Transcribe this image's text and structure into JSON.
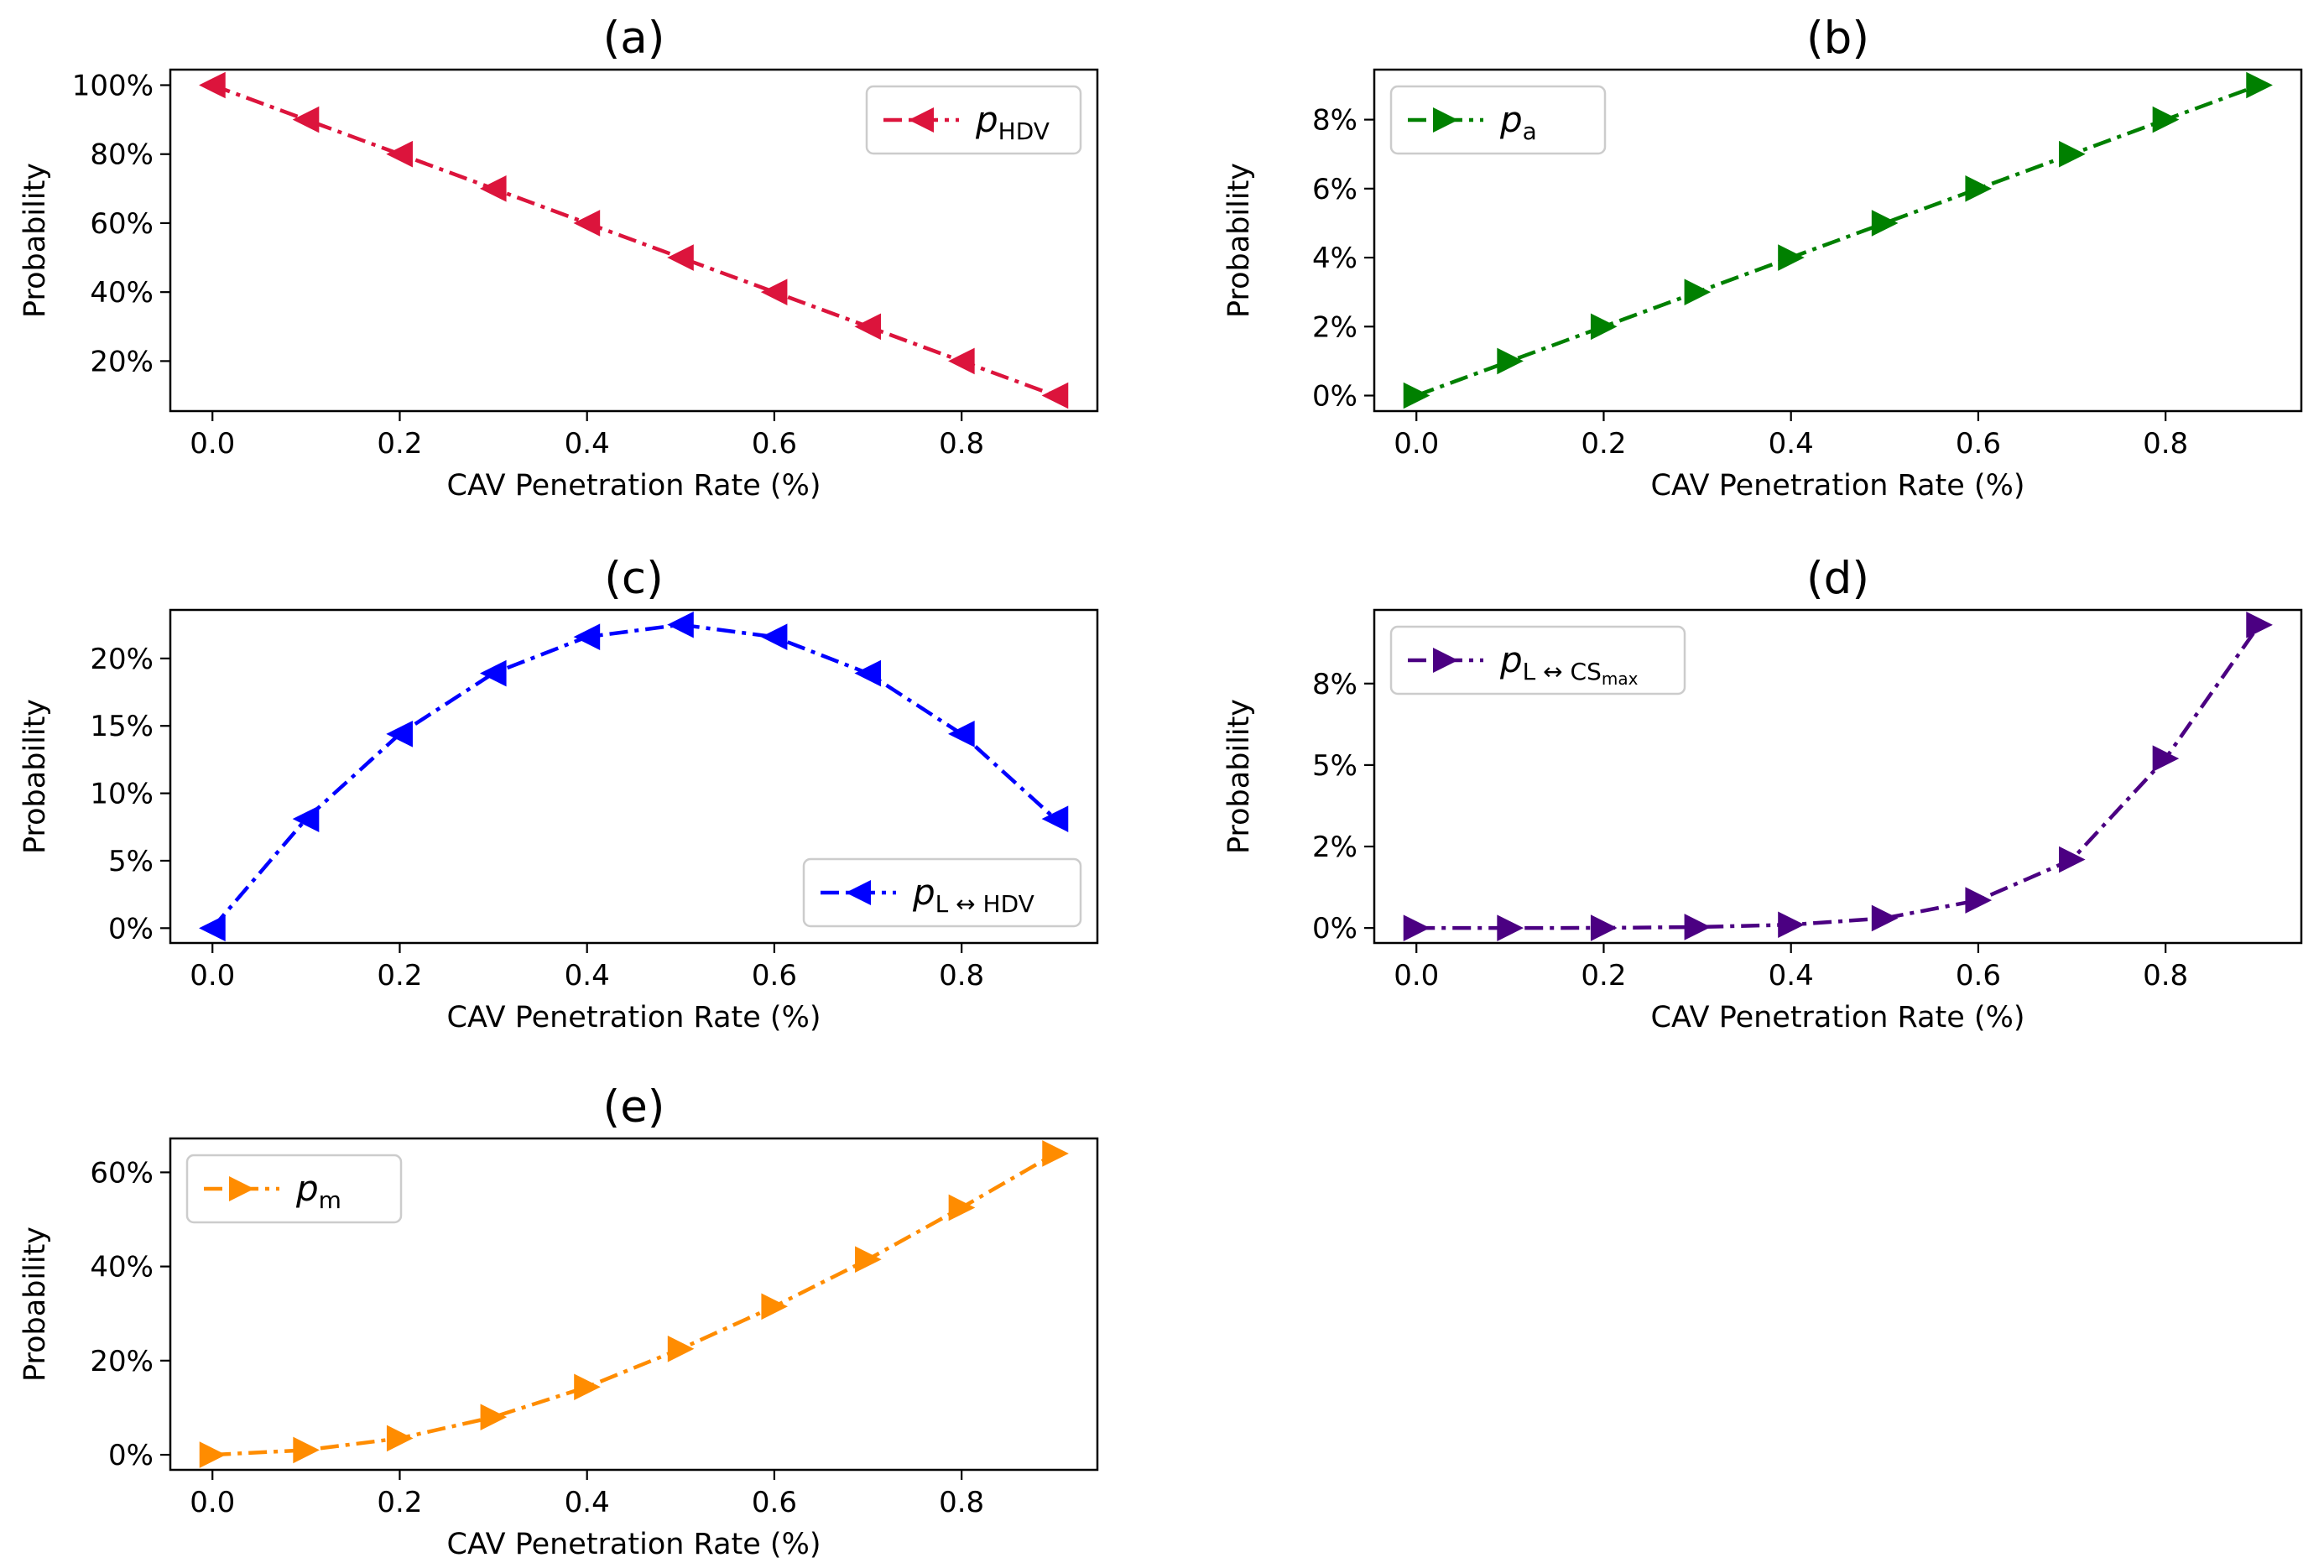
{
  "chart_data": [
    {
      "id": "a",
      "type": "line",
      "title": "(a)",
      "xlabel": "CAV Penetration Rate (%)",
      "ylabel": "Probability",
      "color": "#dc143c",
      "marker": "triangle-left",
      "line_style": "dashdot",
      "legend_position": "top-right",
      "legend": {
        "main": "p",
        "sub": "HDV"
      },
      "x": [
        0.0,
        0.1,
        0.2,
        0.3,
        0.4,
        0.5,
        0.6,
        0.7,
        0.8,
        0.9
      ],
      "values": [
        100,
        90,
        80,
        70,
        60,
        50,
        40,
        30,
        20,
        10
      ],
      "xlim": [
        -0.045,
        0.945
      ],
      "ylim": [
        5.5,
        104.5
      ],
      "xticks": [
        0.0,
        0.2,
        0.4,
        0.6,
        0.8
      ],
      "xtick_labels": [
        "0.0",
        "0.2",
        "0.4",
        "0.6",
        "0.8"
      ],
      "yticks": [
        20,
        40,
        60,
        80,
        100
      ],
      "ytick_labels": [
        "20%",
        "40%",
        "60%",
        "80%",
        "100%"
      ]
    },
    {
      "id": "b",
      "type": "line",
      "title": "(b)",
      "xlabel": "CAV Penetration Rate (%)",
      "ylabel": "Probability",
      "color": "#008000",
      "marker": "triangle-right",
      "line_style": "dashdot",
      "legend_position": "top-left",
      "legend": {
        "main": "p",
        "sub": "a"
      },
      "x": [
        0.0,
        0.1,
        0.2,
        0.3,
        0.4,
        0.5,
        0.6,
        0.7,
        0.8,
        0.9
      ],
      "values": [
        0,
        1,
        2,
        3,
        4,
        5,
        6,
        7,
        8,
        9
      ],
      "xlim": [
        -0.045,
        0.945
      ],
      "ylim": [
        -0.45,
        9.45
      ],
      "xticks": [
        0.0,
        0.2,
        0.4,
        0.6,
        0.8
      ],
      "xtick_labels": [
        "0.0",
        "0.2",
        "0.4",
        "0.6",
        "0.8"
      ],
      "yticks": [
        0,
        2,
        4,
        6,
        8
      ],
      "ytick_labels": [
        "0%",
        "2%",
        "4%",
        "6%",
        "8%"
      ]
    },
    {
      "id": "c",
      "type": "line",
      "title": "(c)",
      "xlabel": "CAV Penetration Rate (%)",
      "ylabel": "Probability",
      "color": "#0000ff",
      "marker": "triangle-left",
      "line_style": "dashdot",
      "legend_position": "bottom-right",
      "legend": {
        "main": "p",
        "sub": "L ↔ HDV"
      },
      "x": [
        0.0,
        0.1,
        0.2,
        0.3,
        0.4,
        0.5,
        0.6,
        0.7,
        0.8,
        0.9
      ],
      "values": [
        0,
        8.1,
        14.4,
        18.9,
        21.6,
        22.5,
        21.6,
        18.9,
        14.4,
        8.1
      ],
      "xlim": [
        -0.045,
        0.945
      ],
      "ylim": [
        -1.1,
        23.6
      ],
      "xticks": [
        0.0,
        0.2,
        0.4,
        0.6,
        0.8
      ],
      "xtick_labels": [
        "0.0",
        "0.2",
        "0.4",
        "0.6",
        "0.8"
      ],
      "yticks": [
        0,
        5,
        10,
        15,
        20
      ],
      "ytick_labels": [
        "0%",
        "5%",
        "10%",
        "15%",
        "20%"
      ]
    },
    {
      "id": "d",
      "type": "line",
      "title": "(d)",
      "xlabel": "CAV Penetration Rate (%)",
      "ylabel": "Probability",
      "color": "#4b0082",
      "marker": "triangle-right",
      "line_style": "dashdot",
      "legend_position": "top-left",
      "legend": {
        "main": "p",
        "sub": "L ↔ CS",
        "subsub": "max"
      },
      "x": [
        0.0,
        0.1,
        0.2,
        0.3,
        0.4,
        0.5,
        0.6,
        0.7,
        0.8,
        0.9
      ],
      "values": [
        0,
        0,
        0.003,
        0.03,
        0.1,
        0.3,
        0.85,
        2.1,
        5.2,
        9.3
      ],
      "xlim": [
        -0.045,
        0.945
      ],
      "ylim": [
        -0.46,
        9.76
      ],
      "xticks": [
        0.0,
        0.2,
        0.4,
        0.6,
        0.8
      ],
      "xtick_labels": [
        "0.0",
        "0.2",
        "0.4",
        "0.6",
        "0.8"
      ],
      "yticks": [
        0,
        2.5,
        5,
        7.5
      ],
      "ytick_labels": [
        "0%",
        "2%",
        "5%",
        "8%"
      ]
    },
    {
      "id": "e",
      "type": "line",
      "title": "(e)",
      "xlabel": "CAV Penetration Rate (%)",
      "ylabel": "Probability",
      "color": "#ff8c00",
      "marker": "triangle-right",
      "line_style": "dashdot",
      "legend_position": "top-left",
      "legend": {
        "main": "p",
        "sub": "m"
      },
      "x": [
        0.0,
        0.1,
        0.2,
        0.3,
        0.4,
        0.5,
        0.6,
        0.7,
        0.8,
        0.9
      ],
      "values": [
        0,
        1,
        3.5,
        8,
        14.4,
        22.5,
        31.5,
        41.5,
        52.5,
        64
      ],
      "xlim": [
        -0.045,
        0.945
      ],
      "ylim": [
        -3.2,
        67.2
      ],
      "xticks": [
        0.0,
        0.2,
        0.4,
        0.6,
        0.8
      ],
      "xtick_labels": [
        "0.0",
        "0.2",
        "0.4",
        "0.6",
        "0.8"
      ],
      "yticks": [
        0,
        20,
        40,
        60
      ],
      "ytick_labels": [
        "0%",
        "20%",
        "40%",
        "60%"
      ]
    }
  ]
}
